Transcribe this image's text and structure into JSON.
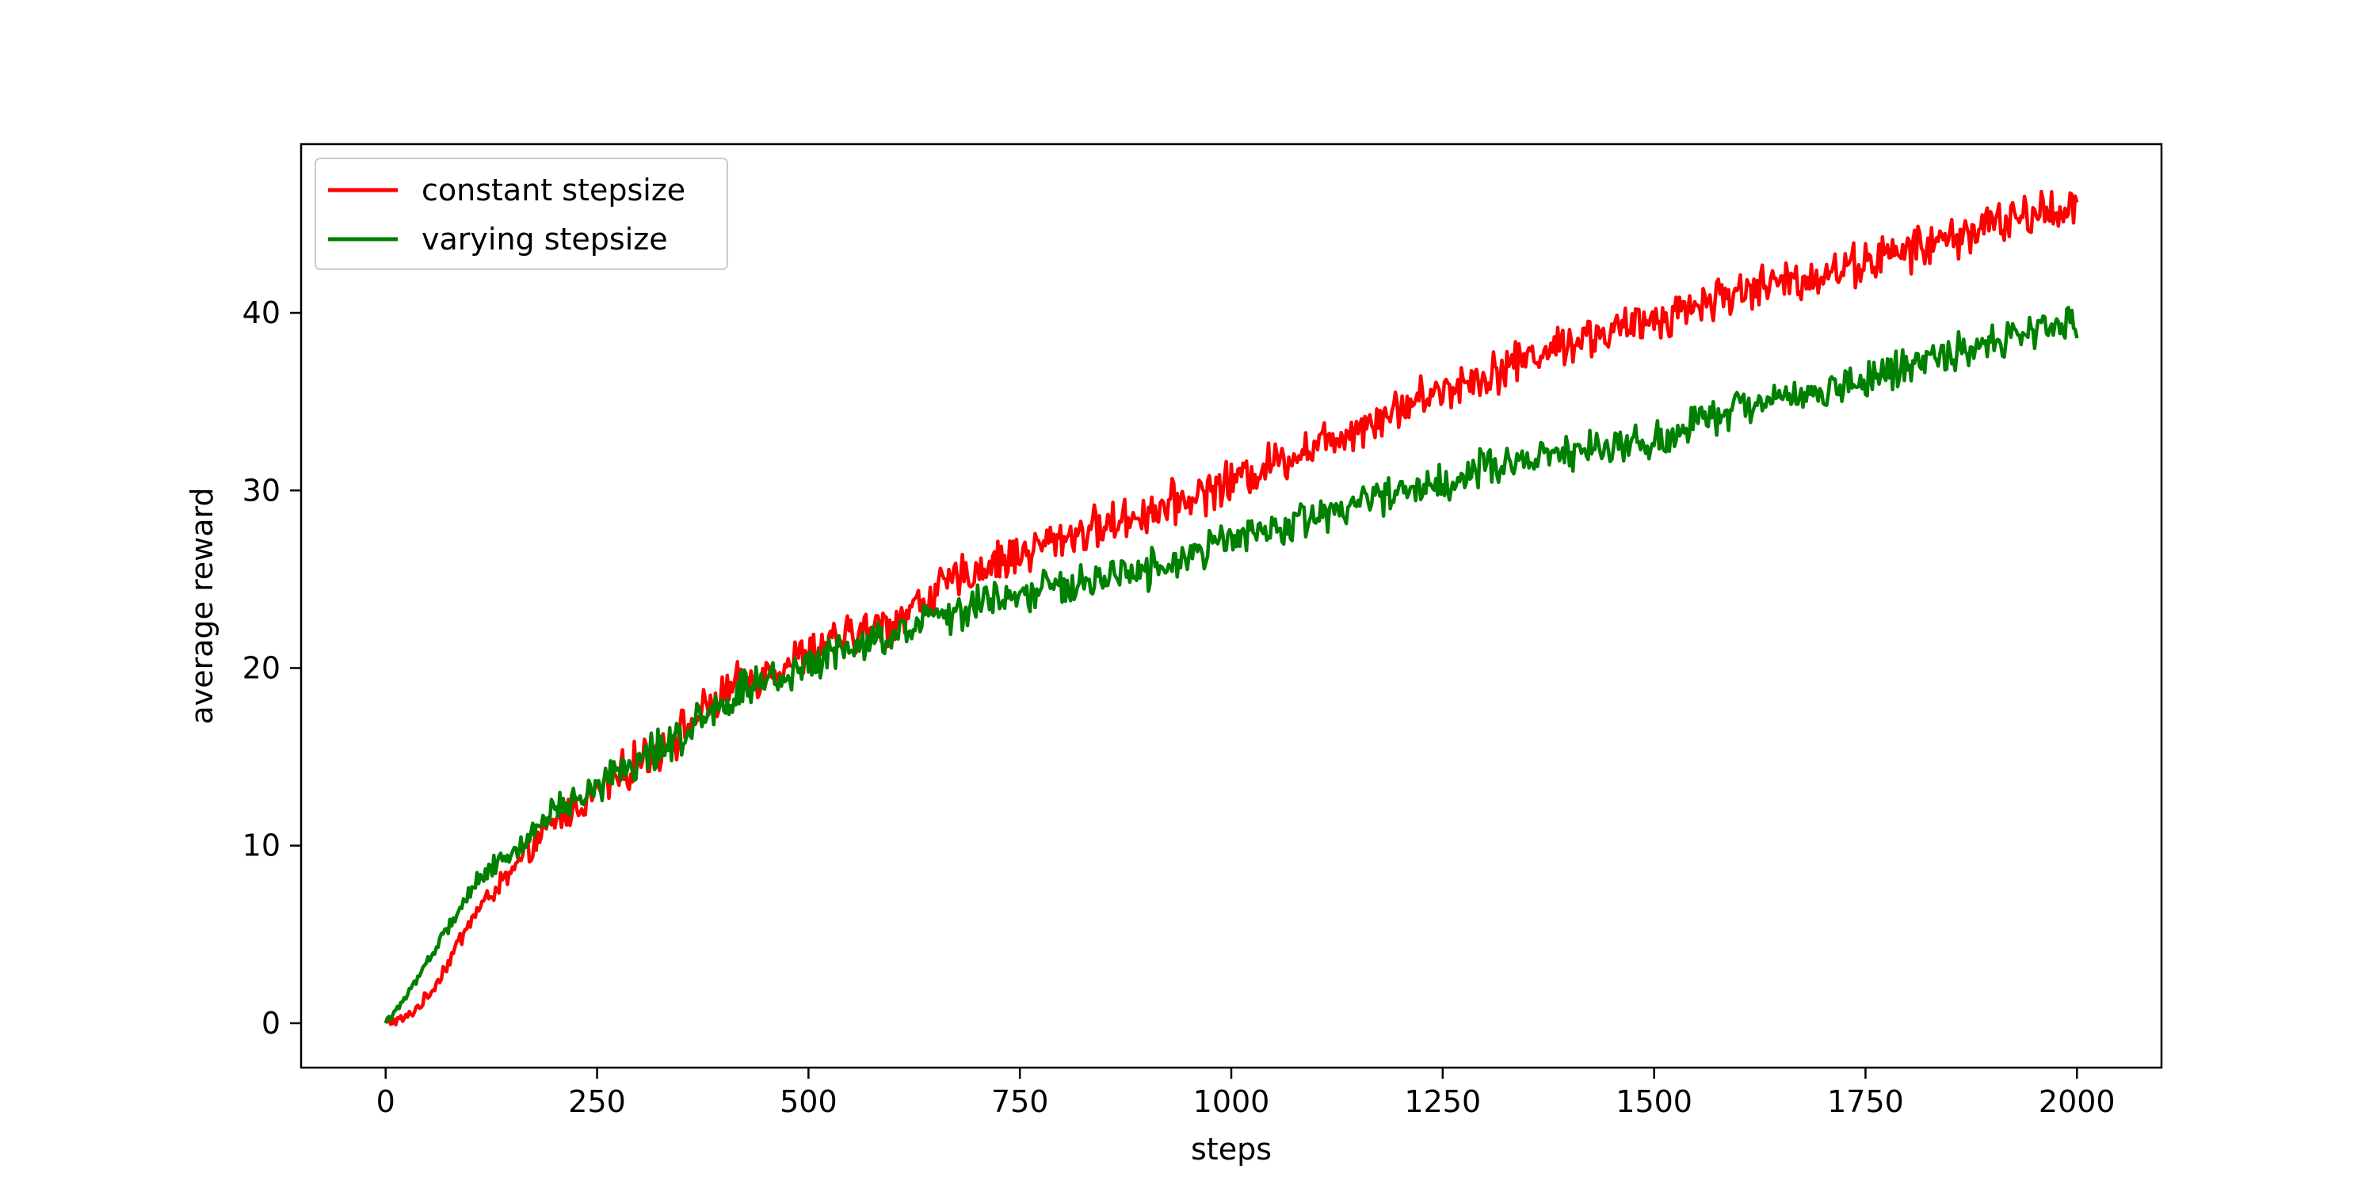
{
  "chart_data": {
    "type": "line",
    "title": "",
    "xlabel": "steps",
    "ylabel": "average reward",
    "xlim": [
      -100,
      2100
    ],
    "ylim": [
      -2.5,
      49.5
    ],
    "xticks": [
      0,
      250,
      500,
      750,
      1000,
      1250,
      1500,
      1750,
      2000
    ],
    "yticks": [
      0,
      10,
      20,
      30,
      40
    ],
    "grid": false,
    "legend_position": "top-left",
    "series": [
      {
        "name": "constant stepsize",
        "color": "#ff0000",
        "noise": 0.9,
        "points": [
          [
            0,
            0
          ],
          [
            25,
            0.3
          ],
          [
            50,
            1.5
          ],
          [
            75,
            3.5
          ],
          [
            100,
            5.8
          ],
          [
            125,
            7.3
          ],
          [
            150,
            8.5
          ],
          [
            175,
            10
          ],
          [
            200,
            11.3
          ],
          [
            250,
            13
          ],
          [
            300,
            14.8
          ],
          [
            350,
            16.4
          ],
          [
            400,
            18.5
          ],
          [
            450,
            19.8
          ],
          [
            500,
            20.8
          ],
          [
            550,
            21.8
          ],
          [
            600,
            22.6
          ],
          [
            650,
            24.3
          ],
          [
            700,
            25.6
          ],
          [
            750,
            26.4
          ],
          [
            800,
            27.4
          ],
          [
            850,
            28
          ],
          [
            900,
            28.8
          ],
          [
            950,
            29.6
          ],
          [
            1000,
            30.5
          ],
          [
            1050,
            31.6
          ],
          [
            1100,
            32.6
          ],
          [
            1150,
            33.6
          ],
          [
            1200,
            34.7
          ],
          [
            1250,
            35.7
          ],
          [
            1300,
            36.5
          ],
          [
            1350,
            37.5
          ],
          [
            1400,
            38.4
          ],
          [
            1450,
            38.9
          ],
          [
            1500,
            39.6
          ],
          [
            1550,
            40.5
          ],
          [
            1600,
            41.2
          ],
          [
            1650,
            41.7
          ],
          [
            1700,
            42.2
          ],
          [
            1750,
            42.9
          ],
          [
            1800,
            43.5
          ],
          [
            1850,
            44.2
          ],
          [
            1900,
            45
          ],
          [
            1950,
            45.6
          ],
          [
            2000,
            46
          ]
        ]
      },
      {
        "name": "varying stepsize",
        "color": "#008000",
        "noise": 0.8,
        "points": [
          [
            0,
            0
          ],
          [
            25,
            1.5
          ],
          [
            50,
            3.5
          ],
          [
            75,
            5.5
          ],
          [
            100,
            7.5
          ],
          [
            125,
            8.9
          ],
          [
            150,
            9.4
          ],
          [
            175,
            10.8
          ],
          [
            200,
            12
          ],
          [
            250,
            13.5
          ],
          [
            300,
            14.8
          ],
          [
            350,
            16.3
          ],
          [
            400,
            18.2
          ],
          [
            450,
            19.3
          ],
          [
            500,
            20.2
          ],
          [
            550,
            21.1
          ],
          [
            600,
            22
          ],
          [
            650,
            22.8
          ],
          [
            700,
            23.6
          ],
          [
            750,
            24.3
          ],
          [
            800,
            24.8
          ],
          [
            850,
            25.1
          ],
          [
            900,
            25.4
          ],
          [
            950,
            26.3
          ],
          [
            1000,
            27.2
          ],
          [
            1050,
            27.8
          ],
          [
            1100,
            28.6
          ],
          [
            1150,
            29.3
          ],
          [
            1200,
            29.9
          ],
          [
            1250,
            30.5
          ],
          [
            1300,
            31.2
          ],
          [
            1350,
            31.8
          ],
          [
            1400,
            32.1
          ],
          [
            1450,
            32.5
          ],
          [
            1500,
            32.9
          ],
          [
            1550,
            33.8
          ],
          [
            1600,
            34.7
          ],
          [
            1650,
            35.1
          ],
          [
            1700,
            35.6
          ],
          [
            1750,
            36.2
          ],
          [
            1800,
            37
          ],
          [
            1850,
            37.8
          ],
          [
            1900,
            38.4
          ],
          [
            1950,
            39
          ],
          [
            2000,
            39.5
          ]
        ]
      }
    ]
  }
}
